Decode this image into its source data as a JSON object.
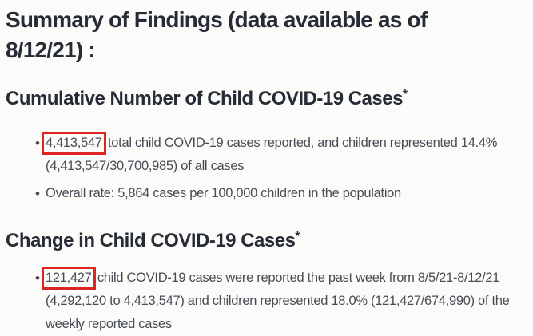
{
  "colors": {
    "background": "#fbfbf9",
    "heading_text": "#262b36",
    "body_text": "#484c55",
    "highlight_box_border": "#dc2423"
  },
  "header": {
    "title_line1": "Summary of Findings (data available as of",
    "title_line2": "8/12/21) :"
  },
  "sections": [
    {
      "heading": "Cumulative Number of Child COVID-19 Cases",
      "heading_superscript": "*",
      "bullets": [
        {
          "highlight": "4,413,547",
          "rest": " total child COVID-19 cases reported, and children represented 14.4% (4,413,547/30,700,985) of all cases"
        },
        {
          "text": "Overall rate: 5,864 cases per 100,000 children in the population"
        }
      ]
    },
    {
      "heading": "Change in Child COVID-19 Cases",
      "heading_superscript": "*",
      "bullets": [
        {
          "highlight": "121,427",
          "rest": " child COVID-19 cases were reported the past week from 8/5/21-8/12/21 (4,292,120 to 4,413,547) and children represented 18.0% (121,427/674,990) of the weekly reported cases"
        }
      ]
    }
  ]
}
